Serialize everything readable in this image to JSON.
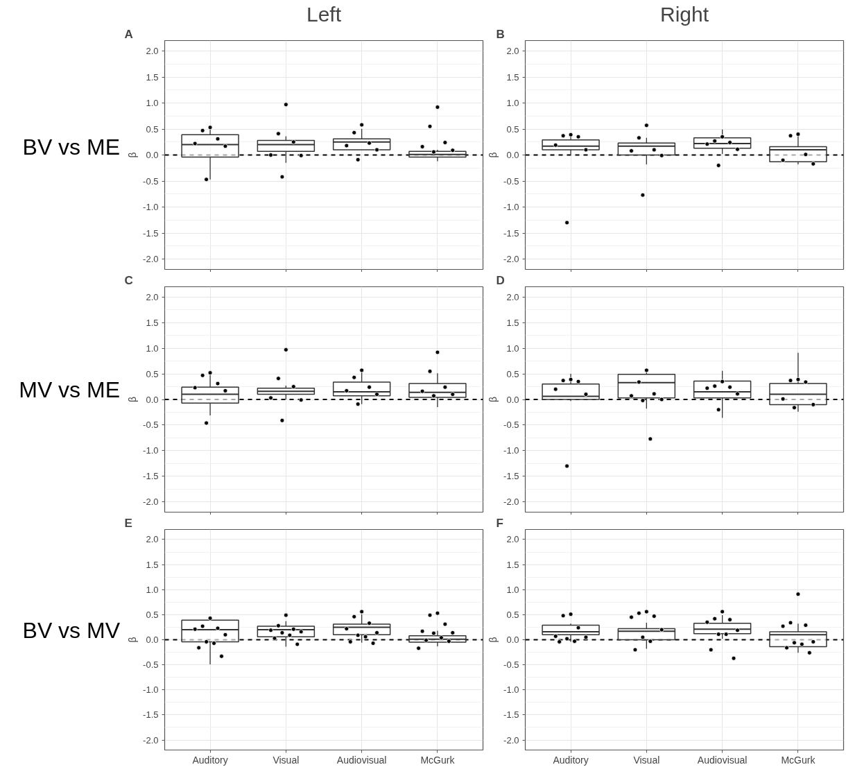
{
  "chart_data": [
    {
      "type": "box",
      "title": "Left",
      "ylabel": "β",
      "annotations": [
        "A",
        "BV vs ME"
      ],
      "categories": [
        "Auditory",
        "Visual",
        "Audiovisual",
        "McGurk"
      ],
      "boxes": [
        {
          "low": -0.47,
          "q1": -0.04,
          "median": 0.2,
          "q3": 0.39,
          "high": 0.52
        },
        {
          "low": -0.15,
          "q1": 0.07,
          "median": 0.2,
          "q3": 0.28,
          "high": 0.36
        },
        {
          "low": 0.1,
          "q1": 0.1,
          "median": 0.25,
          "q3": 0.31,
          "high": 0.5
        },
        {
          "low": -0.12,
          "q1": -0.04,
          "median": 0.01,
          "q3": 0.07,
          "high": 0.1
        }
      ],
      "series": [
        {
          "type": "scatter",
          "color": "#000000",
          "x": [
            "Auditory",
            "Auditory",
            "Auditory",
            "Auditory",
            "Auditory",
            "Auditory",
            "Visual",
            "Visual",
            "Visual",
            "Visual",
            "Visual",
            "Visual",
            "Audiovisual",
            "Audiovisual",
            "Audiovisual",
            "Audiovisual",
            "Audiovisual",
            "Audiovisual",
            "McGurk",
            "McGurk",
            "McGurk",
            "McGurk",
            "McGurk",
            "McGurk"
          ],
          "values": [
            0.53,
            0.47,
            0.31,
            0.22,
            0.17,
            -0.47,
            0.97,
            0.41,
            0.25,
            0.0,
            -0.01,
            -0.42,
            0.58,
            0.43,
            0.23,
            0.18,
            0.1,
            -0.09,
            0.92,
            0.55,
            0.24,
            0.16,
            0.09,
            0.06
          ]
        }
      ],
      "ylim": [
        -2.2,
        2.2
      ],
      "yticks": [
        {
          "value": -2,
          "label": "-2.0"
        },
        {
          "value": -1.5,
          "label": "-1.5"
        },
        {
          "value": -1,
          "label": "-1.0"
        },
        {
          "value": -0.5,
          "label": "-0.5"
        },
        {
          "value": 0,
          "label": "0.0"
        },
        {
          "value": 0.5,
          "label": "0.5"
        },
        {
          "value": 1,
          "label": "1.0"
        },
        {
          "value": 1.5,
          "label": "1.5"
        },
        {
          "value": 2,
          "label": "2.0"
        }
      ],
      "ref_lines": [
        {
          "axis": "y",
          "value": 0,
          "color": "#000000",
          "line_style": "dashed"
        }
      ],
      "grid": true,
      "tick_labels": "y",
      "marker": "circle"
    },
    {
      "type": "box",
      "title": "Right",
      "ylabel": "β",
      "annotations": [
        "B"
      ],
      "categories": [
        "Auditory",
        "Visual",
        "Audiovisual",
        "McGurk"
      ],
      "boxes": [
        {
          "low": 0.01,
          "q1": 0.1,
          "median": 0.17,
          "q3": 0.29,
          "high": 0.38
        },
        {
          "low": -0.18,
          "q1": 0.0,
          "median": 0.17,
          "q3": 0.23,
          "high": 0.33
        },
        {
          "low": 0.02,
          "q1": 0.13,
          "median": 0.22,
          "q3": 0.33,
          "high": 0.49
        },
        {
          "low": -0.18,
          "q1": -0.13,
          "median": 0.1,
          "q3": 0.16,
          "high": 0.4
        }
      ],
      "series": [
        {
          "type": "scatter",
          "color": "#000000",
          "x": [
            "Auditory",
            "Auditory",
            "Auditory",
            "Auditory",
            "Auditory",
            "Auditory",
            "Visual",
            "Visual",
            "Visual",
            "Visual",
            "Visual",
            "Visual",
            "Audiovisual",
            "Audiovisual",
            "Audiovisual",
            "Audiovisual",
            "Audiovisual",
            "Audiovisual",
            "McGurk",
            "McGurk",
            "McGurk",
            "McGurk",
            "McGurk"
          ],
          "values": [
            0.39,
            0.37,
            0.35,
            0.19,
            0.1,
            -1.3,
            0.57,
            0.33,
            0.1,
            0.08,
            -0.01,
            -0.77,
            0.35,
            0.27,
            0.24,
            0.21,
            0.11,
            -0.2,
            0.4,
            0.37,
            0.01,
            -0.1,
            -0.17
          ]
        }
      ],
      "ylim": [
        -2.2,
        2.2
      ],
      "yticks": [
        {
          "value": -2,
          "label": "-2.0"
        },
        {
          "value": -1.5,
          "label": "-1.5"
        },
        {
          "value": -1,
          "label": "-1.0"
        },
        {
          "value": -0.5,
          "label": "-0.5"
        },
        {
          "value": 0,
          "label": "0.0"
        },
        {
          "value": 0.5,
          "label": "0.5"
        },
        {
          "value": 1,
          "label": "1.0"
        },
        {
          "value": 1.5,
          "label": "1.5"
        },
        {
          "value": 2,
          "label": "2.0"
        }
      ],
      "ref_lines": [
        {
          "axis": "y",
          "value": 0,
          "color": "#000000",
          "line_style": "dashed"
        }
      ],
      "grid": true,
      "tick_labels": "y",
      "marker": "circle"
    },
    {
      "type": "box",
      "ylabel": "β",
      "annotations": [
        "C",
        "MV vs ME"
      ],
      "categories": [
        "Auditory",
        "Visual",
        "Audiovisual",
        "McGurk"
      ],
      "boxes": [
        {
          "low": -0.31,
          "q1": -0.07,
          "median": 0.1,
          "q3": 0.24,
          "high": 0.5
        },
        {
          "low": 0.0,
          "q1": 0.1,
          "median": 0.16,
          "q3": 0.22,
          "high": 0.27
        },
        {
          "low": -0.09,
          "q1": 0.07,
          "median": 0.15,
          "q3": 0.34,
          "high": 0.55
        },
        {
          "low": -0.15,
          "q1": 0.04,
          "median": 0.14,
          "q3": 0.31,
          "high": 0.51
        }
      ],
      "series": [
        {
          "type": "scatter",
          "color": "#000000",
          "x": [
            "Auditory",
            "Auditory",
            "Auditory",
            "Auditory",
            "Auditory",
            "Auditory",
            "Visual",
            "Visual",
            "Visual",
            "Visual",
            "Visual",
            "Visual",
            "Audiovisual",
            "Audiovisual",
            "Audiovisual",
            "Audiovisual",
            "Audiovisual",
            "Audiovisual",
            "McGurk",
            "McGurk",
            "McGurk",
            "McGurk",
            "McGurk",
            "McGurk"
          ],
          "values": [
            0.52,
            0.47,
            0.31,
            0.23,
            0.17,
            -0.46,
            0.97,
            0.41,
            0.25,
            0.03,
            -0.01,
            -0.41,
            0.57,
            0.43,
            0.24,
            0.17,
            0.1,
            -0.09,
            0.92,
            0.55,
            0.24,
            0.16,
            0.1,
            0.07
          ]
        }
      ],
      "ylim": [
        -2.2,
        2.2
      ],
      "yticks": [
        {
          "value": -2,
          "label": "-2.0"
        },
        {
          "value": -1.5,
          "label": "-1.5"
        },
        {
          "value": -1,
          "label": "-1.0"
        },
        {
          "value": -0.5,
          "label": "-0.5"
        },
        {
          "value": 0,
          "label": "0.0"
        },
        {
          "value": 0.5,
          "label": "0.5"
        },
        {
          "value": 1,
          "label": "1.0"
        },
        {
          "value": 1.5,
          "label": "1.5"
        },
        {
          "value": 2,
          "label": "2.0"
        }
      ],
      "ref_lines": [
        {
          "axis": "y",
          "value": 0,
          "color": "#000000",
          "line_style": "dashed"
        }
      ],
      "grid": true,
      "tick_labels": "y",
      "marker": "circle"
    },
    {
      "type": "box",
      "ylabel": "β",
      "annotations": [
        "D"
      ],
      "categories": [
        "Auditory",
        "Visual",
        "Audiovisual",
        "McGurk"
      ],
      "boxes": [
        {
          "low": -0.03,
          "q1": 0.0,
          "median": 0.06,
          "q3": 0.3,
          "high": 0.5
        },
        {
          "low": -0.18,
          "q1": 0.03,
          "median": 0.33,
          "q3": 0.49,
          "high": 0.58
        },
        {
          "low": -0.36,
          "q1": 0.03,
          "median": 0.15,
          "q3": 0.36,
          "high": 0.56
        },
        {
          "low": -0.24,
          "q1": -0.1,
          "median": 0.1,
          "q3": 0.31,
          "high": 0.91
        }
      ],
      "series": [
        {
          "type": "scatter",
          "color": "#000000",
          "x": [
            "Auditory",
            "Auditory",
            "Auditory",
            "Auditory",
            "Auditory",
            "Auditory",
            "Visual",
            "Visual",
            "Visual",
            "Visual",
            "Visual",
            "Visual",
            "Visual",
            "Audiovisual",
            "Audiovisual",
            "Audiovisual",
            "Audiovisual",
            "Audiovisual",
            "Audiovisual",
            "McGurk",
            "McGurk",
            "McGurk",
            "McGurk",
            "McGurk",
            "McGurk"
          ],
          "values": [
            0.39,
            0.37,
            0.35,
            0.2,
            0.1,
            -1.3,
            0.57,
            0.34,
            0.11,
            0.07,
            0.0,
            -0.02,
            -0.77,
            0.35,
            0.26,
            0.24,
            0.22,
            0.11,
            -0.2,
            0.39,
            0.37,
            0.34,
            0.01,
            -0.1,
            -0.16
          ]
        }
      ],
      "ylim": [
        -2.2,
        2.2
      ],
      "yticks": [
        {
          "value": -2,
          "label": "-2.0"
        },
        {
          "value": -1.5,
          "label": "-1.5"
        },
        {
          "value": -1,
          "label": "-1.0"
        },
        {
          "value": -0.5,
          "label": "-0.5"
        },
        {
          "value": 0,
          "label": "0.0"
        },
        {
          "value": 0.5,
          "label": "0.5"
        },
        {
          "value": 1,
          "label": "1.0"
        },
        {
          "value": 1.5,
          "label": "1.5"
        },
        {
          "value": 2,
          "label": "2.0"
        }
      ],
      "ref_lines": [
        {
          "axis": "y",
          "value": 0,
          "color": "#000000",
          "line_style": "dashed"
        }
      ],
      "grid": true,
      "tick_labels": "y",
      "marker": "circle"
    },
    {
      "type": "box",
      "ylabel": "β",
      "annotations": [
        "E",
        "BV vs MV"
      ],
      "categories": [
        "Auditory",
        "Visual",
        "Audiovisual",
        "McGurk"
      ],
      "boxes": [
        {
          "low": -0.49,
          "q1": -0.04,
          "median": 0.2,
          "q3": 0.39,
          "high": 0.44
        },
        {
          "low": -0.14,
          "q1": 0.06,
          "median": 0.2,
          "q3": 0.27,
          "high": 0.37
        },
        {
          "low": -0.06,
          "q1": 0.1,
          "median": 0.25,
          "q3": 0.31,
          "high": 0.51
        },
        {
          "low": -0.13,
          "q1": -0.05,
          "median": 0.01,
          "q3": 0.08,
          "high": 0.18
        }
      ],
      "series": [
        {
          "type": "scatter",
          "color": "#000000",
          "x": [
            "Auditory",
            "Auditory",
            "Auditory",
            "Auditory",
            "Auditory",
            "Auditory",
            "Auditory",
            "Auditory",
            "Auditory",
            "Visual",
            "Visual",
            "Visual",
            "Visual",
            "Visual",
            "Visual",
            "Visual",
            "Visual",
            "Visual",
            "Audiovisual",
            "Audiovisual",
            "Audiovisual",
            "Audiovisual",
            "Audiovisual",
            "Audiovisual",
            "Audiovisual",
            "Audiovisual",
            "Audiovisual",
            "McGurk",
            "McGurk",
            "McGurk",
            "McGurk",
            "McGurk",
            "McGurk",
            "McGurk",
            "McGurk",
            "McGurk",
            "McGurk"
          ],
          "values": [
            0.43,
            0.27,
            0.23,
            0.21,
            0.1,
            -0.04,
            -0.07,
            -0.16,
            -0.33,
            0.49,
            0.28,
            0.21,
            0.19,
            0.16,
            0.14,
            0.09,
            0.03,
            -0.09,
            0.56,
            0.46,
            0.33,
            0.22,
            0.14,
            0.09,
            0.06,
            -0.04,
            -0.07,
            0.53,
            0.49,
            0.31,
            0.17,
            0.14,
            0.13,
            0.04,
            -0.01,
            -0.03,
            -0.17
          ]
        }
      ],
      "ylim": [
        -2.2,
        2.2
      ],
      "yticks": [
        {
          "value": -2,
          "label": "-2.0"
        },
        {
          "value": -1.5,
          "label": "-1.5"
        },
        {
          "value": -1,
          "label": "-1.0"
        },
        {
          "value": -0.5,
          "label": "-0.5"
        },
        {
          "value": 0,
          "label": "0.0"
        },
        {
          "value": 0.5,
          "label": "0.5"
        },
        {
          "value": 1,
          "label": "1.0"
        },
        {
          "value": 1.5,
          "label": "1.5"
        },
        {
          "value": 2,
          "label": "2.0"
        }
      ],
      "ref_lines": [
        {
          "axis": "y",
          "value": 0,
          "color": "#000000",
          "line_style": "dashed"
        }
      ],
      "grid": true,
      "marker": "circle"
    },
    {
      "type": "box",
      "ylabel": "β",
      "annotations": [
        "F"
      ],
      "categories": [
        "Auditory",
        "Visual",
        "Audiovisual",
        "McGurk"
      ],
      "boxes": [
        {
          "low": -0.04,
          "q1": 0.1,
          "median": 0.16,
          "q3": 0.29,
          "high": 0.32
        },
        {
          "low": -0.18,
          "q1": 0.0,
          "median": 0.17,
          "q3": 0.22,
          "high": 0.34
        },
        {
          "low": 0.02,
          "q1": 0.12,
          "median": 0.21,
          "q3": 0.33,
          "high": 0.49
        },
        {
          "low": -0.26,
          "q1": -0.14,
          "median": 0.1,
          "q3": 0.16,
          "high": 0.32
        }
      ],
      "series": [
        {
          "type": "scatter",
          "color": "#000000",
          "x": [
            "Auditory",
            "Auditory",
            "Auditory",
            "Auditory",
            "Auditory",
            "Auditory",
            "Auditory",
            "Auditory",
            "Visual",
            "Visual",
            "Visual",
            "Visual",
            "Visual",
            "Visual",
            "Visual",
            "Visual",
            "Audiovisual",
            "Audiovisual",
            "Audiovisual",
            "Audiovisual",
            "Audiovisual",
            "Audiovisual",
            "Audiovisual",
            "Audiovisual",
            "Audiovisual",
            "McGurk",
            "McGurk",
            "McGurk",
            "McGurk",
            "McGurk",
            "McGurk",
            "McGurk",
            "McGurk",
            "McGurk"
          ],
          "values": [
            0.51,
            0.48,
            0.24,
            0.07,
            0.05,
            0.02,
            -0.03,
            -0.04,
            0.56,
            0.53,
            0.47,
            0.45,
            0.2,
            0.05,
            -0.03,
            -0.2,
            0.56,
            0.42,
            0.4,
            0.35,
            0.19,
            0.11,
            0.11,
            -0.2,
            -0.37,
            0.91,
            0.34,
            0.29,
            0.27,
            -0.04,
            -0.06,
            -0.09,
            -0.16,
            -0.26
          ]
        }
      ],
      "ylim": [
        -2.2,
        2.2
      ],
      "yticks": [
        {
          "value": -2,
          "label": "-2.0"
        },
        {
          "value": -1.5,
          "label": "-1.5"
        },
        {
          "value": -1,
          "label": "-1.0"
        },
        {
          "value": -0.5,
          "label": "-0.5"
        },
        {
          "value": 0,
          "label": "0.0"
        },
        {
          "value": 0.5,
          "label": "0.5"
        },
        {
          "value": 1,
          "label": "1.0"
        },
        {
          "value": 1.5,
          "label": "1.5"
        },
        {
          "value": 2,
          "label": "2.0"
        }
      ],
      "ref_lines": [
        {
          "axis": "y",
          "value": 0,
          "color": "#000000",
          "line_style": "dashed"
        }
      ],
      "grid": true,
      "marker": "circle"
    }
  ]
}
